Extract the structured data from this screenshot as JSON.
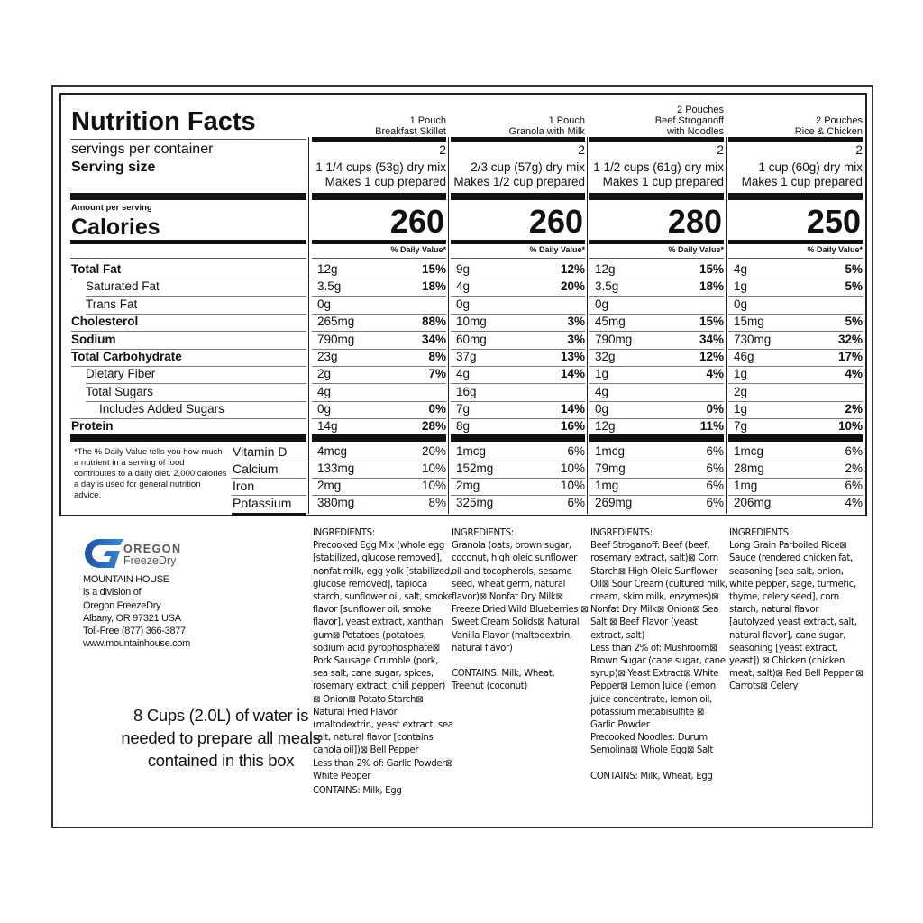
{
  "label": {
    "title": "Nutrition Facts",
    "servings_label": "servings per container",
    "serving_size_label": "Serving size",
    "amount_per_serving": "Amount per serving",
    "calories_label": "Calories",
    "dv_header": "% Daily Value*",
    "nutrients": [
      {
        "name": "Total Fat",
        "bold": true,
        "indent": 0
      },
      {
        "name": "Saturated Fat",
        "bold": false,
        "indent": 1
      },
      {
        "name": "Trans Fat",
        "bold": false,
        "indent": 1
      },
      {
        "name": "Cholesterol",
        "bold": true,
        "indent": 0
      },
      {
        "name": "Sodium",
        "bold": true,
        "indent": 0
      },
      {
        "name": "Total Carbohydrate",
        "bold": true,
        "indent": 0
      },
      {
        "name": "Dietary Fiber",
        "bold": false,
        "indent": 1
      },
      {
        "name": "Total Sugars",
        "bold": false,
        "indent": 1
      },
      {
        "name": "Includes Added Sugars",
        "bold": false,
        "indent": 2
      },
      {
        "name": "Protein",
        "bold": true,
        "indent": 0
      }
    ],
    "vitamins": [
      "Vitamin D",
      "Calcium",
      "Iron",
      "Potassium"
    ],
    "footnote": "*The % Daily Value tells you how much a nutrient in a serving of food contributes to a daily diet. 2,000 calories a day is used for general nutrition advice.",
    "products": [
      {
        "header": [
          "1 Pouch",
          "Breakfast Skillet"
        ],
        "servings": "2",
        "serving_size": "1 1/4 cups (53g) dry mix",
        "prepared": "Makes 1 cup prepared",
        "calories": "260",
        "amounts": [
          "12g",
          "3.5g",
          "0g",
          "265mg",
          "790mg",
          "23g",
          "2g",
          "4g",
          "0g",
          "14g"
        ],
        "dv": [
          "15%",
          "18%",
          "",
          "88%",
          "34%",
          "8%",
          "7%",
          "",
          "0%",
          "28%"
        ],
        "vit_amounts": [
          "4mcg",
          "133mg",
          "2mg",
          "380mg"
        ],
        "vit_dv": [
          "20%",
          "10%",
          "10%",
          "8%"
        ]
      },
      {
        "header": [
          "1 Pouch",
          "Granola with Milk"
        ],
        "servings": "2",
        "serving_size": "2/3 cup (57g) dry mix",
        "prepared": "Makes 1/2 cup prepared",
        "calories": "260",
        "amounts": [
          "9g",
          "4g",
          "0g",
          "10mg",
          "60mg",
          "37g",
          "4g",
          "16g",
          "7g",
          "8g"
        ],
        "dv": [
          "12%",
          "20%",
          "",
          "3%",
          "3%",
          "13%",
          "14%",
          "",
          "14%",
          "16%"
        ],
        "vit_amounts": [
          "1mcg",
          "152mg",
          "2mg",
          "325mg"
        ],
        "vit_dv": [
          "6%",
          "10%",
          "10%",
          "6%"
        ]
      },
      {
        "header": [
          "2 Pouches",
          "Beef Stroganoff",
          "with Noodles"
        ],
        "servings": "2",
        "serving_size": "1 1/2 cups (61g) dry mix",
        "prepared": "Makes 1 cup prepared",
        "calories": "280",
        "amounts": [
          "12g",
          "3.5g",
          "0g",
          "45mg",
          "790mg",
          "32g",
          "1g",
          "4g",
          "0g",
          "12g"
        ],
        "dv": [
          "15%",
          "18%",
          "",
          "15%",
          "34%",
          "12%",
          "4%",
          "",
          "0%",
          "11%"
        ],
        "vit_amounts": [
          "1mcg",
          "79mg",
          "1mg",
          "269mg"
        ],
        "vit_dv": [
          "6%",
          "6%",
          "6%",
          "6%"
        ]
      },
      {
        "header": [
          "2 Pouches",
          "Rice & Chicken"
        ],
        "servings": "2",
        "serving_size": "1 cup (60g) dry mix",
        "prepared": "Makes 1 cup prepared",
        "calories": "250",
        "amounts": [
          "4g",
          "1g",
          "0g",
          "15mg",
          "730mg",
          "46g",
          "1g",
          "2g",
          "1g",
          "7g"
        ],
        "dv": [
          "5%",
          "5%",
          "",
          "5%",
          "32%",
          "17%",
          "4%",
          "",
          "2%",
          "10%"
        ],
        "vit_amounts": [
          "1mcg",
          "28mg",
          "1mg",
          "206mg"
        ],
        "vit_dv": [
          "6%",
          "2%",
          "6%",
          "4%"
        ]
      }
    ]
  },
  "company": {
    "logo_top": "OREGON",
    "logo_bottom": "FreezeDry",
    "logo_color": "#2f6fc0",
    "lines": [
      "MOUNTAIN HOUSE",
      "is a division of",
      "Oregon FreezeDry",
      "Albany, OR 97321 USA",
      "Toll-Free (877) 366-3877",
      "www.mountainhouse.com"
    ],
    "water_note": [
      "8 Cups (2.0L) of water is",
      "needed to prepare all meals",
      "contained in this box"
    ]
  },
  "ingredients": [
    {
      "heading": "INGREDIENTS:",
      "body": "Precooked Egg Mix (whole egg [stabilized, glucose removed], nonfat milk, egg yolk [stabilized, glucose removed], tapioca starch, sunflower oil, salt, smoke flavor [sunflower oil, smoke flavor], yeast extract, xanthan gum⊠ Potatoes (potatoes, sodium acid pyrophosphate⊠ Pork Sausage Crumble (pork, sea salt, cane sugar, spices, rosemary extract, chili pepper) ⊠ Onion⊠ Potato Starch⊠ Natural Fried Flavor (maltodextrin, yeast extract, sea salt, natural flavor [contains canola oil])⊠ Bell Pepper",
      "less": "Less than 2% of: Garlic Powder⊠ White Pepper",
      "contains": "CONTAINS: Milk, Egg"
    },
    {
      "heading": "INGREDIENTS:",
      "body": "Granola (oats, brown sugar, coconut, high oleic sunflower oil and tocopherols, sesame seed, wheat germ, natural flavor)⊠ Nonfat Dry Milk⊠ Freeze Dried Wild Blueberries ⊠ Sweet Cream Solids⊠ Natural Vanilla Flavor (maltodextrin, natural flavor)",
      "less": "",
      "contains": "CONTAINS: Milk, Wheat, Treenut (coconut)"
    },
    {
      "heading": "INGREDIENTS:",
      "body": "Beef Stroganoff: Beef (beef, rosemary extract, salt)⊠ Corn Starch⊠ High Oleic Sunflower Oil⊠ Sour Cream (cultured milk, cream, skim milk, enzymes)⊠ Nonfat Dry Milk⊠ Onion⊠ Sea Salt ⊠ Beef Flavor (yeast extract, salt)",
      "less": "Less than 2% of: Mushroom⊠ Brown Sugar (cane sugar, cane syrup)⊠ Yeast Extract⊠ White Pepper⊠ Lemon Juice (lemon juice concentrate, lemon oil, potassium metabisulfite ⊠ Garlic Powder",
      "extra": "Precooked Noodles: Durum Semolina⊠ Whole Egg⊠ Salt",
      "contains": "CONTAINS: Milk, Wheat, Egg"
    },
    {
      "heading": "INGREDIENTS:",
      "body": "Long Grain Parboiled Rice⊠ Sauce (rendered chicken fat, seasoning [sea salt, onion, white pepper, sage, turmeric, thyme, celery seed], corn starch, natural flavor [autolyzed yeast extract, salt, natural flavor], cane sugar, seasoning [yeast extract, yeast]) ⊠ Chicken (chicken meat, salt)⊠ Red Bell Pepper ⊠ Carrots⊠ Celery",
      "less": "",
      "contains": ""
    }
  ]
}
